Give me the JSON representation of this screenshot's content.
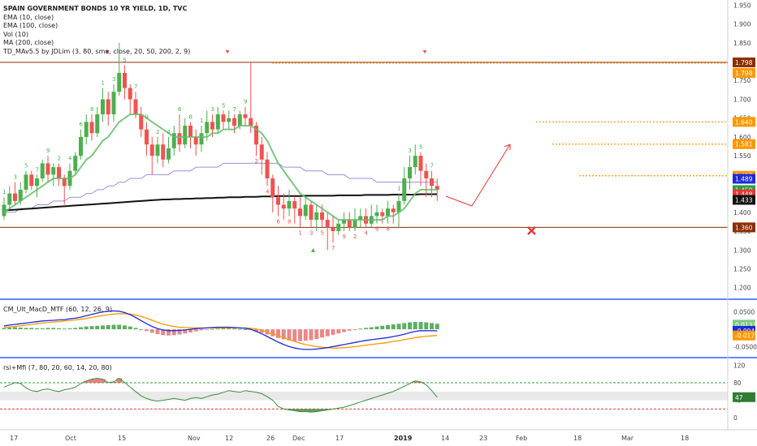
{
  "header": {
    "title": "SPAIN GOVERNMENT BONDS 10 YR YIELD, 1D, TVC",
    "indicators": [
      "EMA (10, close)",
      "EMA (100, close)",
      "Vol (10)",
      "MA (200, close)",
      "TD_MAv5.5 by JDLim (3, 80, sma, close, 20, 50, 200, 2, 9)"
    ]
  },
  "macd_panel": {
    "label": "CM_Ult_MacD_MTF (60, 12, 26, 9)"
  },
  "rsi_panel": {
    "label": "rsi+Mfi (7, 80, 20, 60, 14, 20, 80)"
  },
  "colors": {
    "up": "#4caf50",
    "down": "#ef5350",
    "ema10": "#66bb6a",
    "ema100": "#9c8fd6",
    "ma200": "#111111",
    "level_orange": "#ff9800",
    "level_dark": "#8b2e00",
    "arrow": "#e53935",
    "panel_border": "#2962ff"
  },
  "icons": {
    "target_x": "x-mark-icon",
    "up_arrow": "arrow-up-icon",
    "down_arrow": "arrow-down-icon"
  },
  "chart_data": [
    {
      "type": "candlestick",
      "title": "SPAIN GOVERNMENT BONDS 10 YR YIELD, 1D, TVC",
      "x_ticks": [
        "17",
        "Oct",
        "15",
        "Nov",
        "12",
        "26",
        "Dec",
        "17",
        "2019",
        "14",
        "23",
        "Feb",
        "18",
        "Mar",
        "18"
      ],
      "y_ticks": [
        "1.950",
        "1.900",
        "1.850",
        "1.800",
        "1.750",
        "1.700",
        "1.650",
        "1.600",
        "1.550",
        "1.500",
        "1.450",
        "1.400",
        "1.350",
        "1.300",
        "1.250",
        "1.200"
      ],
      "ylim": [
        1.18,
        1.955
      ],
      "candles": [
        [
          1.39,
          1.42,
          1.38,
          1.44
        ],
        [
          1.42,
          1.45,
          1.41,
          1.47
        ],
        [
          1.45,
          1.43,
          1.42,
          1.48
        ],
        [
          1.43,
          1.46,
          1.42,
          1.48
        ],
        [
          1.46,
          1.5,
          1.45,
          1.51
        ],
        [
          1.5,
          1.47,
          1.46,
          1.51
        ],
        [
          1.47,
          1.49,
          1.44,
          1.5
        ],
        [
          1.49,
          1.53,
          1.48,
          1.54
        ],
        [
          1.53,
          1.5,
          1.48,
          1.55
        ],
        [
          1.5,
          1.52,
          1.47,
          1.53
        ],
        [
          1.52,
          1.49,
          1.47,
          1.53
        ],
        [
          1.49,
          1.47,
          1.42,
          1.5
        ],
        [
          1.47,
          1.51,
          1.46,
          1.53
        ],
        [
          1.51,
          1.55,
          1.5,
          1.56
        ],
        [
          1.55,
          1.6,
          1.54,
          1.62
        ],
        [
          1.6,
          1.64,
          1.58,
          1.66
        ],
        [
          1.64,
          1.61,
          1.59,
          1.66
        ],
        [
          1.61,
          1.66,
          1.6,
          1.68
        ],
        [
          1.66,
          1.7,
          1.64,
          1.73
        ],
        [
          1.7,
          1.66,
          1.63,
          1.72
        ],
        [
          1.66,
          1.72,
          1.64,
          1.74
        ],
        [
          1.72,
          1.77,
          1.71,
          1.85
        ],
        [
          1.77,
          1.73,
          1.7,
          1.79
        ],
        [
          1.73,
          1.7,
          1.66,
          1.74
        ],
        [
          1.7,
          1.66,
          1.65,
          1.72
        ],
        [
          1.66,
          1.62,
          1.6,
          1.68
        ],
        [
          1.62,
          1.58,
          1.55,
          1.64
        ],
        [
          1.58,
          1.55,
          1.5,
          1.6
        ],
        [
          1.55,
          1.58,
          1.53,
          1.6
        ],
        [
          1.58,
          1.54,
          1.52,
          1.61
        ],
        [
          1.54,
          1.57,
          1.53,
          1.6
        ],
        [
          1.57,
          1.61,
          1.55,
          1.63
        ],
        [
          1.61,
          1.58,
          1.56,
          1.66
        ],
        [
          1.58,
          1.63,
          1.57,
          1.65
        ],
        [
          1.63,
          1.6,
          1.57,
          1.64
        ],
        [
          1.6,
          1.58,
          1.55,
          1.62
        ],
        [
          1.58,
          1.61,
          1.56,
          1.63
        ],
        [
          1.61,
          1.64,
          1.59,
          1.67
        ],
        [
          1.64,
          1.62,
          1.6,
          1.66
        ],
        [
          1.62,
          1.66,
          1.61,
          1.68
        ],
        [
          1.66,
          1.64,
          1.62,
          1.67
        ],
        [
          1.64,
          1.65,
          1.62,
          1.67
        ],
        [
          1.65,
          1.63,
          1.61,
          1.66
        ],
        [
          1.63,
          1.66,
          1.62,
          1.67
        ],
        [
          1.66,
          1.65,
          1.63,
          1.68
        ],
        [
          1.65,
          1.63,
          1.61,
          1.8
        ],
        [
          1.63,
          1.58,
          1.55,
          1.64
        ],
        [
          1.58,
          1.54,
          1.5,
          1.6
        ],
        [
          1.54,
          1.49,
          1.47,
          1.56
        ],
        [
          1.49,
          1.44,
          1.4,
          1.5
        ],
        [
          1.44,
          1.42,
          1.39,
          1.47
        ],
        [
          1.42,
          1.41,
          1.38,
          1.45
        ],
        [
          1.41,
          1.43,
          1.39,
          1.46
        ],
        [
          1.43,
          1.41,
          1.37,
          1.44
        ],
        [
          1.41,
          1.39,
          1.36,
          1.44
        ],
        [
          1.39,
          1.42,
          1.38,
          1.44
        ],
        [
          1.42,
          1.38,
          1.36,
          1.43
        ],
        [
          1.38,
          1.4,
          1.35,
          1.42
        ],
        [
          1.4,
          1.38,
          1.36,
          1.42
        ],
        [
          1.38,
          1.36,
          1.3,
          1.4
        ],
        [
          1.36,
          1.35,
          1.32,
          1.39
        ],
        [
          1.35,
          1.37,
          1.34,
          1.38
        ],
        [
          1.37,
          1.38,
          1.35,
          1.4
        ],
        [
          1.38,
          1.36,
          1.35,
          1.4
        ],
        [
          1.36,
          1.38,
          1.35,
          1.41
        ],
        [
          1.38,
          1.39,
          1.36,
          1.41
        ],
        [
          1.39,
          1.37,
          1.36,
          1.41
        ],
        [
          1.37,
          1.39,
          1.36,
          1.42
        ],
        [
          1.39,
          1.4,
          1.37,
          1.42
        ],
        [
          1.4,
          1.39,
          1.37,
          1.41
        ],
        [
          1.39,
          1.41,
          1.37,
          1.43
        ],
        [
          1.41,
          1.4,
          1.37,
          1.42
        ],
        [
          1.4,
          1.43,
          1.36,
          1.45
        ],
        [
          1.43,
          1.49,
          1.42,
          1.52
        ],
        [
          1.49,
          1.52,
          1.46,
          1.55
        ],
        [
          1.52,
          1.55,
          1.5,
          1.58
        ],
        [
          1.55,
          1.51,
          1.47,
          1.56
        ],
        [
          1.51,
          1.49,
          1.44,
          1.53
        ],
        [
          1.49,
          1.47,
          1.44,
          1.51
        ],
        [
          1.47,
          1.46,
          1.43,
          1.49
        ]
      ],
      "ema10": [
        1.4,
        1.41,
        1.42,
        1.43,
        1.44,
        1.45,
        1.46,
        1.47,
        1.48,
        1.49,
        1.49,
        1.49,
        1.49,
        1.5,
        1.52,
        1.54,
        1.55,
        1.57,
        1.59,
        1.6,
        1.62,
        1.64,
        1.65,
        1.66,
        1.66,
        1.66,
        1.65,
        1.64,
        1.63,
        1.62,
        1.61,
        1.6,
        1.6,
        1.6,
        1.6,
        1.6,
        1.6,
        1.6,
        1.61,
        1.61,
        1.62,
        1.62,
        1.62,
        1.63,
        1.63,
        1.63,
        1.62,
        1.61,
        1.59,
        1.56,
        1.53,
        1.51,
        1.49,
        1.47,
        1.45,
        1.44,
        1.43,
        1.42,
        1.41,
        1.4,
        1.39,
        1.38,
        1.38,
        1.38,
        1.38,
        1.38,
        1.38,
        1.38,
        1.38,
        1.38,
        1.39,
        1.39,
        1.4,
        1.41,
        1.43,
        1.45,
        1.46,
        1.46,
        1.46,
        1.46
      ],
      "ema100": [
        1.4,
        1.4,
        1.4,
        1.41,
        1.41,
        1.41,
        1.42,
        1.42,
        1.42,
        1.43,
        1.43,
        1.43,
        1.44,
        1.44,
        1.44,
        1.45,
        1.45,
        1.46,
        1.46,
        1.47,
        1.47,
        1.48,
        1.48,
        1.49,
        1.49,
        1.49,
        1.5,
        1.5,
        1.5,
        1.5,
        1.5,
        1.51,
        1.51,
        1.51,
        1.51,
        1.52,
        1.52,
        1.52,
        1.52,
        1.52,
        1.53,
        1.53,
        1.53,
        1.53,
        1.53,
        1.53,
        1.53,
        1.53,
        1.53,
        1.53,
        1.53,
        1.52,
        1.52,
        1.52,
        1.52,
        1.51,
        1.51,
        1.51,
        1.51,
        1.5,
        1.5,
        1.5,
        1.5,
        1.49,
        1.49,
        1.49,
        1.49,
        1.49,
        1.48,
        1.48,
        1.48,
        1.48,
        1.48,
        1.48,
        1.48,
        1.48,
        1.48,
        1.48,
        1.48,
        1.48
      ],
      "ma200": [
        1.405,
        1.406,
        1.407,
        1.408,
        1.409,
        1.41,
        1.411,
        1.412,
        1.413,
        1.414,
        1.415,
        1.416,
        1.417,
        1.418,
        1.419,
        1.42,
        1.421,
        1.422,
        1.423,
        1.424,
        1.425,
        1.426,
        1.427,
        1.428,
        1.429,
        1.43,
        1.431,
        1.432,
        1.433,
        1.434,
        1.434,
        1.435,
        1.435,
        1.436,
        1.436,
        1.437,
        1.437,
        1.438,
        1.438,
        1.439,
        1.439,
        1.44,
        1.44,
        1.44,
        1.441,
        1.441,
        1.441,
        1.442,
        1.442,
        1.442,
        1.443,
        1.443,
        1.443,
        1.443,
        1.443,
        1.444,
        1.444,
        1.444,
        1.444,
        1.444,
        1.444,
        1.445,
        1.445,
        1.445,
        1.445,
        1.445,
        1.446,
        1.446,
        1.446,
        1.446,
        1.446,
        1.447,
        1.447,
        1.447,
        1.447,
        1.447,
        1.448,
        1.448,
        1.448,
        1.448
      ],
      "levels": [
        {
          "value": 1.798,
          "label": "1.798",
          "color": "#8b2e00",
          "style": "solid"
        },
        {
          "value": 1.798,
          "label": "1.798",
          "color": "#ff9800",
          "style": "dotted"
        },
        {
          "value": 1.64,
          "label": "1.640",
          "color": "#ff9800",
          "style": "dotted"
        },
        {
          "value": 1.581,
          "label": "1.581",
          "color": "#ff9800",
          "style": "dotted"
        },
        {
          "value": 1.497,
          "label": "1.497",
          "color": "#ff9800",
          "style": "dotted"
        },
        {
          "value": 1.36,
          "label": "1.360",
          "color": "#8b2e00",
          "style": "solid"
        }
      ],
      "price_tags": [
        {
          "value": 1.489,
          "label": "1.489",
          "color": "#1e2bd6"
        },
        {
          "value": 1.459,
          "label": "1.459",
          "color": "#2e9e3f"
        },
        {
          "value": 1.448,
          "label": "1.448",
          "color": "#e53935"
        },
        {
          "value": 1.433,
          "label": "1.433",
          "color": "#111111"
        }
      ],
      "projection": [
        [
          1.46,
          1.44
        ],
        [
          1.58,
          1.57
        ]
      ],
      "signals": {
        "td_numbers_up": [
          "1",
          "2",
          "3",
          "4",
          "5",
          "6",
          "7",
          "8",
          "9"
        ],
        "td_numbers_down": [
          "1",
          "2",
          "3",
          "4",
          "5",
          "6",
          "7",
          "8",
          "9"
        ]
      }
    },
    {
      "type": "bar+line",
      "title": "CM_Ult_MacD_MTF (60, 12, 26, 9)",
      "y_ticks": [
        "0.0500",
        "0.0000",
        "-0.0500"
      ],
      "ylim": [
        -0.07,
        0.075
      ],
      "histogram": [
        0.004,
        0.005,
        0.006,
        0.005,
        0.004,
        0.004,
        0.003,
        0.003,
        0.004,
        0.004,
        0.003,
        0.002,
        0.003,
        0.004,
        0.006,
        0.008,
        0.009,
        0.01,
        0.011,
        0.012,
        0.013,
        0.013,
        0.011,
        0.008,
        0.004,
        0.0,
        -0.005,
        -0.01,
        -0.014,
        -0.017,
        -0.018,
        -0.017,
        -0.015,
        -0.012,
        -0.009,
        -0.006,
        -0.003,
        -0.001,
        0.001,
        0.002,
        0.003,
        0.003,
        0.002,
        0.001,
        0.0,
        -0.002,
        -0.006,
        -0.01,
        -0.015,
        -0.02,
        -0.025,
        -0.029,
        -0.032,
        -0.034,
        -0.034,
        -0.033,
        -0.031,
        -0.028,
        -0.024,
        -0.02,
        -0.016,
        -0.012,
        -0.008,
        -0.004,
        -0.001,
        0.002,
        0.004,
        0.006,
        0.008,
        0.01,
        0.012,
        0.014,
        0.016,
        0.018,
        0.02,
        0.021,
        0.021,
        0.02,
        0.018,
        0.016
      ],
      "macd": [
        0.01,
        0.012,
        0.014,
        0.016,
        0.018,
        0.02,
        0.022,
        0.024,
        0.025,
        0.026,
        0.027,
        0.028,
        0.03,
        0.032,
        0.035,
        0.039,
        0.043,
        0.047,
        0.05,
        0.052,
        0.053,
        0.052,
        0.048,
        0.042,
        0.034,
        0.025,
        0.016,
        0.008,
        0.002,
        -0.002,
        -0.004,
        -0.004,
        -0.003,
        -0.002,
        0.0,
        0.002,
        0.003,
        0.004,
        0.005,
        0.006,
        0.006,
        0.006,
        0.005,
        0.004,
        0.003,
        0.0,
        -0.006,
        -0.013,
        -0.021,
        -0.029,
        -0.037,
        -0.044,
        -0.05,
        -0.054,
        -0.057,
        -0.058,
        -0.058,
        -0.057,
        -0.055,
        -0.053,
        -0.05,
        -0.047,
        -0.044,
        -0.041,
        -0.038,
        -0.035,
        -0.032,
        -0.03,
        -0.028,
        -0.026,
        -0.024,
        -0.021,
        -0.018,
        -0.014,
        -0.01,
        -0.006,
        -0.004,
        -0.004,
        -0.004,
        -0.0045
      ],
      "signal": [
        0.006,
        0.007,
        0.008,
        0.01,
        0.012,
        0.014,
        0.016,
        0.018,
        0.02,
        0.021,
        0.022,
        0.024,
        0.025,
        0.027,
        0.029,
        0.031,
        0.034,
        0.037,
        0.04,
        0.042,
        0.044,
        0.045,
        0.045,
        0.044,
        0.041,
        0.037,
        0.032,
        0.026,
        0.02,
        0.015,
        0.011,
        0.008,
        0.006,
        0.005,
        0.004,
        0.004,
        0.004,
        0.004,
        0.004,
        0.004,
        0.004,
        0.004,
        0.004,
        0.004,
        0.004,
        0.003,
        0.001,
        -0.003,
        -0.008,
        -0.013,
        -0.018,
        -0.024,
        -0.03,
        -0.035,
        -0.04,
        -0.044,
        -0.047,
        -0.05,
        -0.052,
        -0.053,
        -0.054,
        -0.054,
        -0.053,
        -0.052,
        -0.05,
        -0.048,
        -0.046,
        -0.044,
        -0.042,
        -0.04,
        -0.038,
        -0.035,
        -0.033,
        -0.03,
        -0.027,
        -0.024,
        -0.022,
        -0.02,
        -0.019,
        -0.0179
      ],
      "value_tags": [
        {
          "value": 0.0133,
          "label": "0.0133",
          "color": "#81c784"
        },
        {
          "value": -0.0045,
          "label": "-0.0045",
          "color": "#1e2bd6"
        },
        {
          "value": -0.0179,
          "label": "-0.0179",
          "color": "#ff9800"
        }
      ]
    },
    {
      "type": "line",
      "title": "rsi+Mfi (7, 80, 20, 60, 14, 20, 80)",
      "y_ticks": [
        "120",
        "80",
        "40",
        "0"
      ],
      "ylim": [
        -20,
        128
      ],
      "upper_band": 80,
      "lower_band": 20,
      "mid_band": [
        40,
        60
      ],
      "values": [
        70,
        75,
        80,
        78,
        68,
        62,
        60,
        64,
        66,
        62,
        60,
        64,
        66,
        70,
        78,
        84,
        88,
        90,
        88,
        80,
        82,
        90,
        80,
        70,
        60,
        50,
        44,
        40,
        38,
        40,
        42,
        44,
        42,
        40,
        44,
        46,
        44,
        48,
        52,
        54,
        58,
        62,
        60,
        58,
        62,
        60,
        58,
        55,
        48,
        40,
        26,
        20,
        18,
        16,
        14,
        14,
        13,
        14,
        16,
        18,
        20,
        22,
        24,
        28,
        32,
        36,
        40,
        44,
        48,
        52,
        56,
        60,
        66,
        72,
        78,
        84,
        82,
        75,
        62,
        47
      ],
      "value_tags": [
        {
          "value": 47,
          "label": "47",
          "color": "#2e7d32"
        }
      ]
    }
  ]
}
